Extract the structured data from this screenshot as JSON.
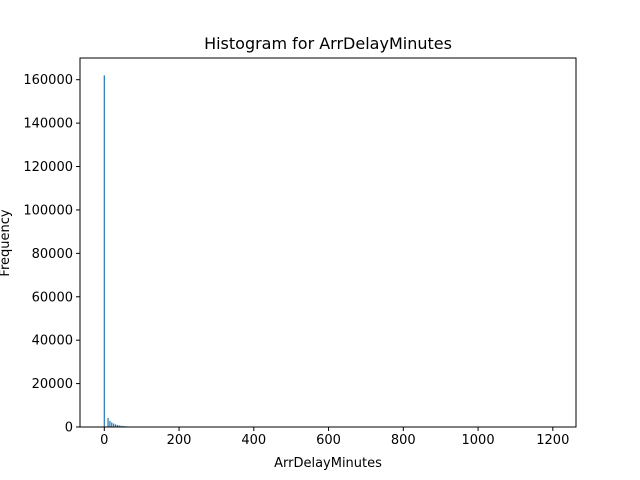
{
  "chart_data": {
    "type": "bar",
    "title": "Histogram for ArrDelayMinutes",
    "xlabel": "ArrDelayMinutes",
    "ylabel": "Frequency",
    "xlim": [
      -65,
      1262
    ],
    "ylim": [
      0,
      170000
    ],
    "xticks": [
      0,
      200,
      400,
      600,
      800,
      1000,
      1200
    ],
    "yticks": [
      0,
      20000,
      40000,
      60000,
      80000,
      100000,
      120000,
      140000,
      160000
    ],
    "grid": false,
    "bar_color": "#1f77b4",
    "bins": [
      {
        "x": 0,
        "value": 162000
      },
      {
        "x": 10,
        "value": 4200
      },
      {
        "x": 15,
        "value": 2800
      },
      {
        "x": 20,
        "value": 2100
      },
      {
        "x": 25,
        "value": 1600
      },
      {
        "x": 30,
        "value": 1200
      },
      {
        "x": 35,
        "value": 950
      },
      {
        "x": 40,
        "value": 750
      },
      {
        "x": 45,
        "value": 600
      },
      {
        "x": 50,
        "value": 480
      },
      {
        "x": 55,
        "value": 380
      },
      {
        "x": 60,
        "value": 300
      },
      {
        "x": 70,
        "value": 200
      },
      {
        "x": 80,
        "value": 140
      },
      {
        "x": 90,
        "value": 100
      },
      {
        "x": 100,
        "value": 70
      },
      {
        "x": 120,
        "value": 40
      },
      {
        "x": 150,
        "value": 20
      }
    ]
  }
}
